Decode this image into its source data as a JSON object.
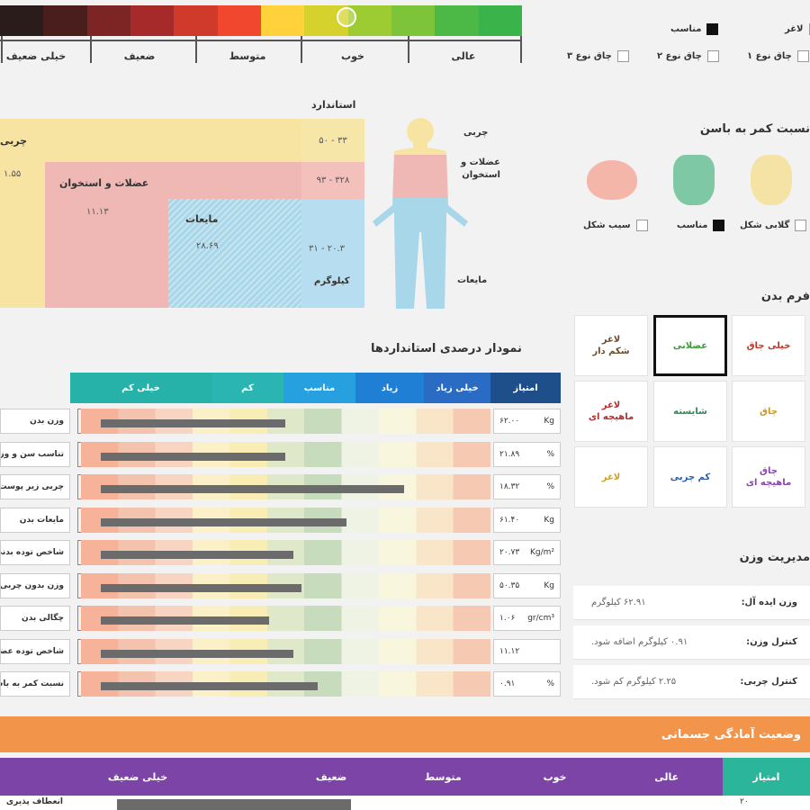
{
  "score_scale": {
    "labels": [
      "عالی",
      "خوب",
      "متوسط",
      "ضعیف",
      "خیلی ضعیف"
    ],
    "strip_colors": [
      "#2a1c1a",
      "#4a1e1c",
      "#7d2424",
      "#a72a2a",
      "#d03a2a",
      "#f0472e",
      "#ffd23c",
      "#d5d22e",
      "#9ccc32",
      "#7ec43a",
      "#4cb845",
      "#3ab34a"
    ]
  },
  "legend": {
    "items": [
      "لاغر",
      "مناسب",
      "چاق نوع ۱",
      "چاق نوع ۲",
      "چاق نوع ۳"
    ],
    "checked_index": 1
  },
  "composition": {
    "header": "استاندارد",
    "fat_label": "چربی",
    "fat_range": "۵۰ - ۳۳",
    "fat_value": "۱.۵۵",
    "muscle_label": "عضلات و استخوان",
    "muscle_range": "۹۳ - ۳۲۸",
    "muscle_value": "۱۱.۱۳",
    "water_label": "مایعات",
    "water_range": "۳۱ - ۲۰.۳",
    "water_value": "۲۸.۶۹",
    "kg_label": "کیلوگرم",
    "side_fat": "چربی",
    "side_muscle": "عضلات و استخوان",
    "side_water": "مایعات"
  },
  "waist_hip": {
    "title": "نسبت کمر به باسن",
    "labels": [
      "گلابی شکل",
      "مناسب",
      "سیب شکل"
    ],
    "checked_index": 1,
    "colors": [
      "#f5e3a6",
      "#7fc8a6",
      "#f4b6a8"
    ]
  },
  "std_chart": {
    "title": "نمودار درصدی استانداردها",
    "headers": [
      "امتیاز",
      "خیلی زیاد",
      "زیاد",
      "مناسب",
      "کم",
      "خیلی کم"
    ],
    "header_colors": [
      "#1f4f8a",
      "#2a6cc4",
      "#1e7fd4",
      "#27a0e0",
      "#2bb5b2",
      "#26b2a8"
    ],
    "rows": [
      {
        "label": "وزن بدن",
        "value": "۶۲.۰۰",
        "unit": "Kg",
        "pct": 0.45
      },
      {
        "label": "تناسب سن و وزن",
        "value": "۲۱.۸۹",
        "unit": "%",
        "pct": 0.45
      },
      {
        "label": "چربی زیر پوست",
        "value": "۱۸.۳۲",
        "unit": "%",
        "pct": 0.74
      },
      {
        "label": "مایعات بدن",
        "value": "۶۱.۴۰",
        "unit": "Kg",
        "pct": 0.6
      },
      {
        "label": "شاخص توده بدنی",
        "value": "۲۰.۷۳",
        "unit": "Kg/m²",
        "pct": 0.47
      },
      {
        "label": "وزن بدون چربی",
        "value": "۵۰.۳۵",
        "unit": "Kg",
        "pct": 0.49
      },
      {
        "label": "چگالی بدن",
        "value": "۱.۰۶",
        "unit": "gr/cm³",
        "pct": 0.41
      },
      {
        "label": "شاخص توده عضلانی",
        "value": "۱۱.۱۲",
        "unit": "",
        "pct": 0.47
      },
      {
        "label": "نسبت کمر به باسن",
        "value": "۰.۹۱",
        "unit": "%",
        "pct": 0.53
      }
    ],
    "zone_colors": [
      "#f6b39a",
      "#f4c3ae",
      "#f8d4c2",
      "#fbf0c8",
      "#f7edb5",
      "#dfe8c8",
      "#c6dcbc",
      "#eef3e4",
      "#f8f6dc",
      "#f9e6c8",
      "#f6c9b2"
    ]
  },
  "body_shape": {
    "title": "فرم بدن",
    "cells": [
      {
        "text": "خیلی چاق",
        "color": "#c0392b"
      },
      {
        "text": "عضلانی",
        "color": "#3a9a3a",
        "selected": true
      },
      {
        "text": "لاغر\nشکم دار",
        "color": "#6b4b2a"
      },
      {
        "text": "چاق",
        "color": "#c99a1f"
      },
      {
        "text": "شایسته",
        "color": "#2e8b57"
      },
      {
        "text": "لاغر\nماهیچه ای",
        "color": "#b03030"
      },
      {
        "text": "چاق\nماهیچه ای",
        "color": "#8e44ad"
      },
      {
        "text": "کم چربی",
        "color": "#2c5fa8"
      },
      {
        "text": "لاغر",
        "color": "#c9a227"
      }
    ]
  },
  "weight_control": {
    "title": "مدیریت وزن",
    "rows": [
      {
        "key": "وزن ایده آل:",
        "value": "۶۲.۹۱ کیلوگرم"
      },
      {
        "key": "کنترل وزن:",
        "value": "۰.۹۱ کیلوگرم اضافه شود."
      },
      {
        "key": "کنترل چربی:",
        "value": "۲.۲۵ کیلوگرم کم شود."
      }
    ]
  },
  "fitness": {
    "title": "وضعیت آمادگی جسمانی",
    "headers": [
      "امتیاز",
      "عالی",
      "خوب",
      "متوسط",
      "ضعیف",
      "خیلی ضعیف"
    ],
    "header_colors": [
      "#2bb59a",
      "#7d44a8",
      "#7d44a8",
      "#7d44a8",
      "#7d44a8",
      "#7d44a8"
    ],
    "first_row_label": "انعطاف پذیری",
    "first_row_score": "۲۰"
  }
}
